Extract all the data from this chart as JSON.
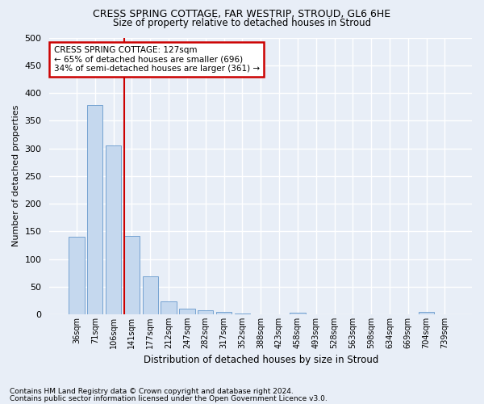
{
  "title": "CRESS SPRING COTTAGE, FAR WESTRIP, STROUD, GL6 6HE",
  "subtitle": "Size of property relative to detached houses in Stroud",
  "xlabel": "Distribution of detached houses by size in Stroud",
  "ylabel": "Number of detached properties",
  "categories": [
    "36sqm",
    "71sqm",
    "106sqm",
    "141sqm",
    "177sqm",
    "212sqm",
    "247sqm",
    "282sqm",
    "317sqm",
    "352sqm",
    "388sqm",
    "423sqm",
    "458sqm",
    "493sqm",
    "528sqm",
    "563sqm",
    "598sqm",
    "634sqm",
    "669sqm",
    "704sqm",
    "739sqm"
  ],
  "values": [
    140,
    378,
    305,
    142,
    68,
    24,
    10,
    8,
    5,
    2,
    0,
    0,
    3,
    0,
    0,
    0,
    0,
    0,
    0,
    4,
    0
  ],
  "bar_color": "#c5d8ee",
  "bar_edge_color": "#6699cc",
  "annotation_line1": "CRESS SPRING COTTAGE: 127sqm",
  "annotation_line2": "← 65% of detached houses are smaller (696)",
  "annotation_line3": "34% of semi-detached houses are larger (361) →",
  "annotation_box_color": "#ffffff",
  "annotation_box_edge": "#cc0000",
  "vline_color": "#cc0000",
  "ylim": [
    0,
    500
  ],
  "yticks": [
    0,
    50,
    100,
    150,
    200,
    250,
    300,
    350,
    400,
    450,
    500
  ],
  "footnote1": "Contains HM Land Registry data © Crown copyright and database right 2024.",
  "footnote2": "Contains public sector information licensed under the Open Government Licence v3.0.",
  "bg_color": "#e8eef7",
  "plot_bg_color": "#e8eef7",
  "grid_color": "#ffffff"
}
